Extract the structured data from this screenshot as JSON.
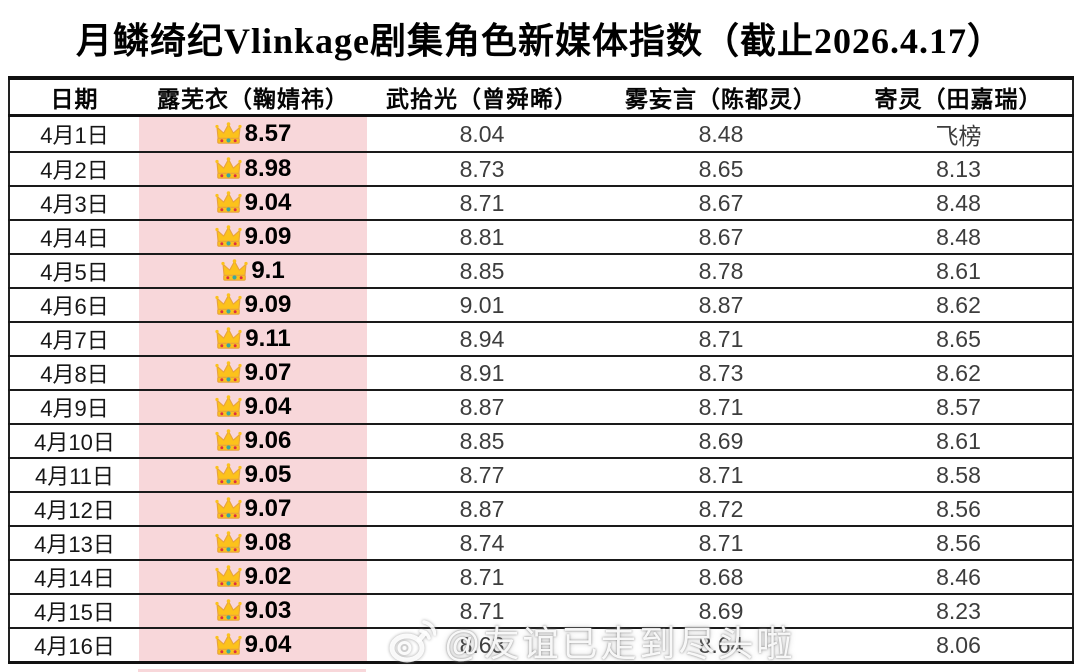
{
  "title": "月鳞绮纪Vlinkage剧集角色新媒体指数（截止2026.4.17）",
  "watermark": {
    "icon": "weibo-logo",
    "text": "@友谊已走到尽头啦"
  },
  "colors": {
    "highlight_pink": "#f8d7da",
    "border_black": "#111111",
    "score_text_gray": "#3d3d3d",
    "crown_gold": "#fcc21b",
    "crown_gem_teal": "#3ba99c",
    "crown_gem_red": "#dd2e44"
  },
  "chart_data": {
    "type": "table",
    "title": "月鳞绮纪Vlinkage剧集角色新媒体指数（截止2026.4.17）",
    "columns": [
      "日期",
      "露芜衣（鞠婧祎）",
      "武拾光（曾舜晞）",
      "雾妄言（陈都灵）",
      "寄灵（田嘉瑞）"
    ],
    "highlighted_column": "露芜衣（鞠婧祎）",
    "rank_icon": "crown",
    "rank_icon_meaning": "daily No.1 index",
    "off_chart_label": "飞榜",
    "rows": [
      [
        "4月1日",
        "8.57",
        "8.04",
        "8.48",
        "飞榜"
      ],
      [
        "4月2日",
        "8.98",
        "8.73",
        "8.65",
        "8.13"
      ],
      [
        "4月3日",
        "9.04",
        "8.71",
        "8.67",
        "8.48"
      ],
      [
        "4月4日",
        "9.09",
        "8.81",
        "8.67",
        "8.48"
      ],
      [
        "4月5日",
        "9.1",
        "8.85",
        "8.78",
        "8.61"
      ],
      [
        "4月6日",
        "9.09",
        "9.01",
        "8.87",
        "8.62"
      ],
      [
        "4月7日",
        "9.11",
        "8.94",
        "8.71",
        "8.65"
      ],
      [
        "4月8日",
        "9.07",
        "8.91",
        "8.73",
        "8.62"
      ],
      [
        "4月9日",
        "9.04",
        "8.87",
        "8.71",
        "8.57"
      ],
      [
        "4月10日",
        "9.06",
        "8.85",
        "8.69",
        "8.61"
      ],
      [
        "4月11日",
        "9.05",
        "8.77",
        "8.71",
        "8.58"
      ],
      [
        "4月12日",
        "9.07",
        "8.87",
        "8.72",
        "8.56"
      ],
      [
        "4月13日",
        "9.08",
        "8.74",
        "8.71",
        "8.56"
      ],
      [
        "4月14日",
        "9.02",
        "8.71",
        "8.68",
        "8.46"
      ],
      [
        "4月15日",
        "9.03",
        "8.71",
        "8.69",
        "8.23"
      ],
      [
        "4月16日",
        "9.04",
        "8.63",
        "8.64",
        "8.06"
      ]
    ]
  }
}
